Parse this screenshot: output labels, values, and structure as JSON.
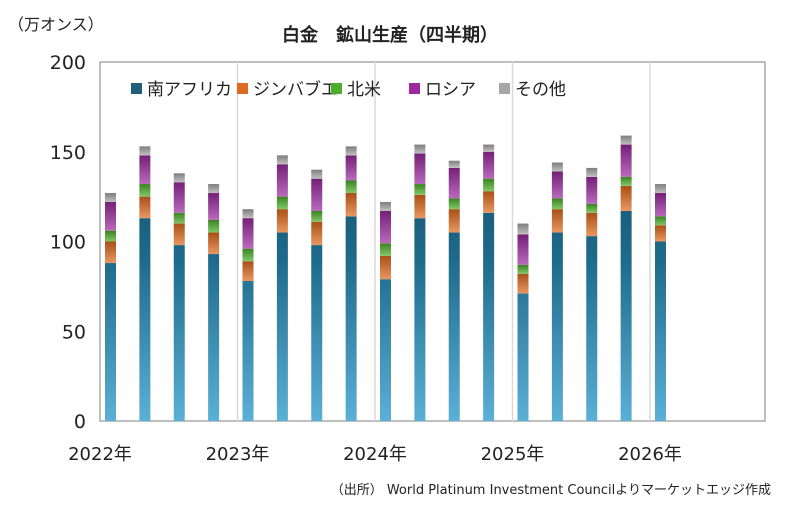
{
  "chart_data": {
    "type": "bar",
    "stacked": true,
    "title": "白金　鉱山生産（四半期）",
    "ylabel": "（万オンス）",
    "source": "（出所） World Platinum Investment Councilよりマーケットエッジ作成",
    "ylim": [
      0,
      200
    ],
    "yticks": [
      0,
      50,
      100,
      150,
      200
    ],
    "x_year_labels": [
      "2022年",
      "2023年",
      "2024年",
      "2025年",
      "2026年"
    ],
    "categories": [
      "2022Q1",
      "2022Q2",
      "2022Q3",
      "2022Q4",
      "2023Q1",
      "2023Q2",
      "2023Q3",
      "2023Q4",
      "2024Q1",
      "2024Q2",
      "2024Q3",
      "2024Q4",
      "2025Q1",
      "2025Q2",
      "2025Q3",
      "2025Q4",
      "2026Q1"
    ],
    "legend_position": "top-left inside",
    "grid": "vertical lines at year boundaries",
    "series": [
      {
        "name": "南アフリカ",
        "color": "#1f5f7a",
        "values": [
          88,
          113,
          98,
          93,
          78,
          105,
          98,
          114,
          79,
          113,
          105,
          116,
          71,
          105,
          103,
          117,
          100
        ]
      },
      {
        "name": "ジンバブエ",
        "color": "#e06a1f",
        "values": [
          12,
          12,
          12,
          12,
          11,
          13,
          13,
          13,
          13,
          13,
          13,
          12,
          11,
          13,
          13,
          14,
          9
        ]
      },
      {
        "name": "北米",
        "color": "#4caf2a",
        "values": [
          6,
          7,
          6,
          7,
          7,
          7,
          6,
          7,
          7,
          6,
          6,
          7,
          5,
          6,
          5,
          5,
          5
        ]
      },
      {
        "name": "ロシア",
        "color": "#9b2a9e",
        "values": [
          16,
          16,
          17,
          15,
          17,
          18,
          18,
          14,
          18,
          17,
          17,
          15,
          17,
          15,
          15,
          18,
          13
        ]
      },
      {
        "name": "その他",
        "color": "#a6a6a6",
        "values": [
          5,
          5,
          5,
          5,
          5,
          5,
          5,
          5,
          5,
          5,
          4,
          4,
          6,
          5,
          5,
          5,
          5
        ]
      }
    ]
  }
}
